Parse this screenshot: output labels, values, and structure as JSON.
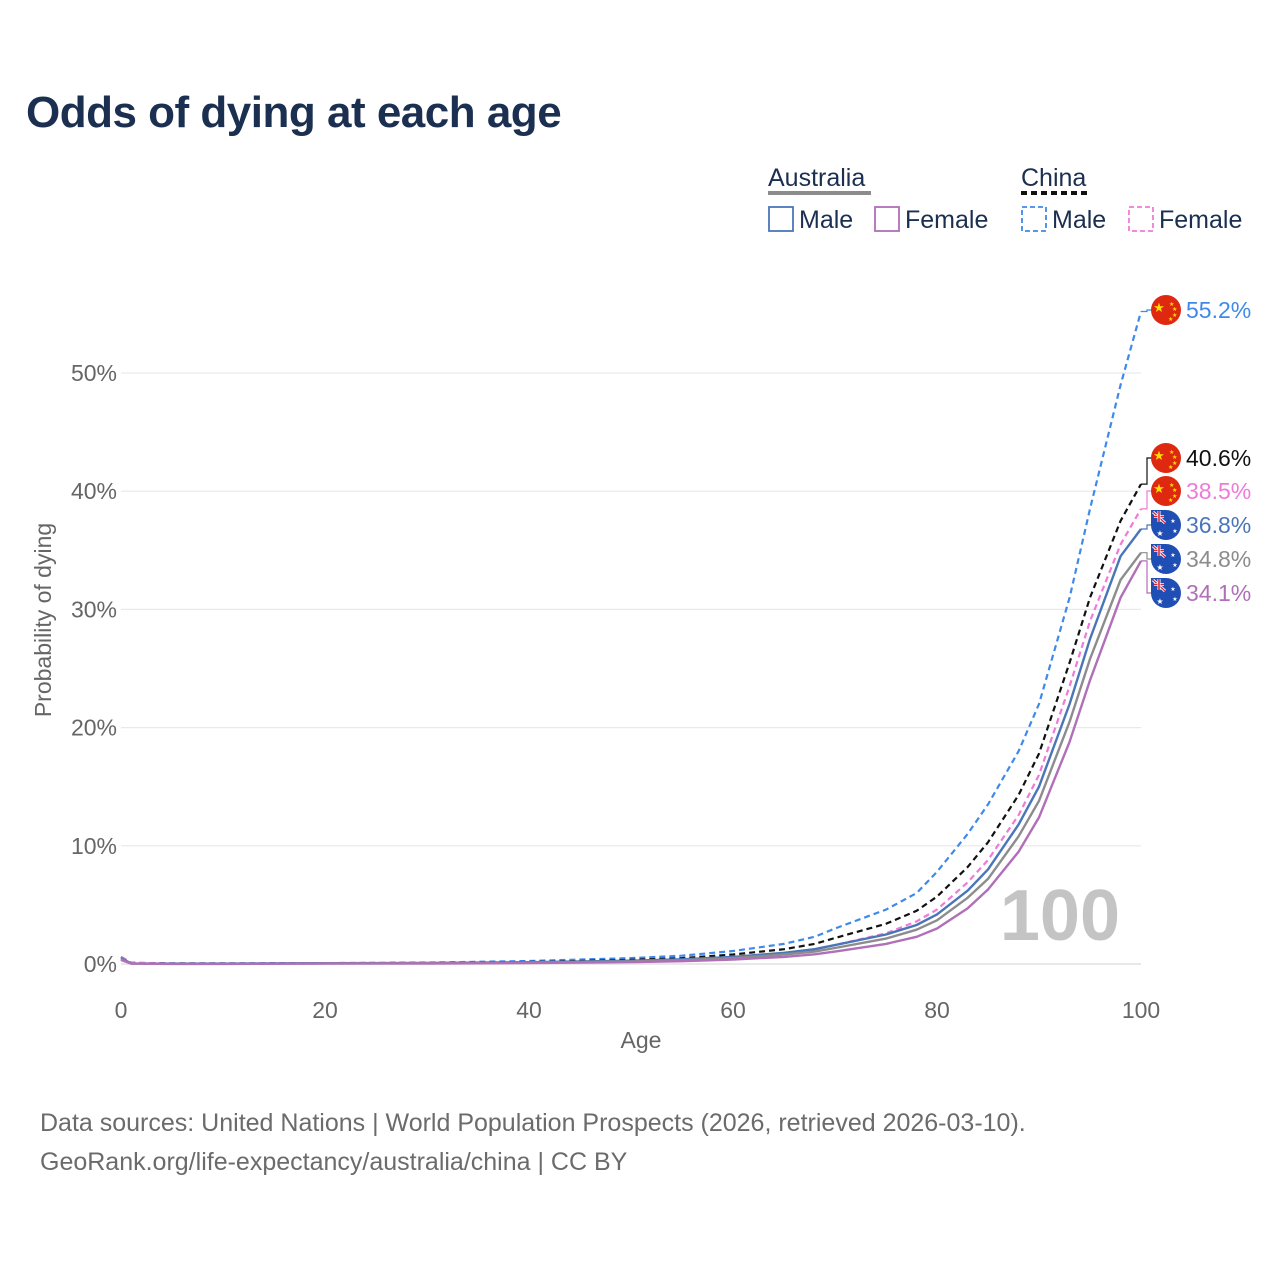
{
  "title": "Odds of dying at each age",
  "footer": {
    "line1": "Data sources: United Nations | World Population Prospects (2026, retrieved 2026-03-10).",
    "line2": "GeoRank.org/life-expectancy/australia/china | CC BY"
  },
  "legend": {
    "groups": [
      {
        "name": "Australia",
        "color": "#8c8c8c",
        "dash": false,
        "items": [
          {
            "label": "Male",
            "color": "#4a76b8"
          },
          {
            "label": "Female",
            "color": "#b06fb8"
          }
        ]
      },
      {
        "name": "China",
        "color": "#111111",
        "dash": true,
        "items": [
          {
            "label": "Male",
            "color": "#3f8ae8"
          },
          {
            "label": "Female",
            "color": "#f07ad8"
          }
        ]
      }
    ]
  },
  "watermark": "100",
  "chart_data": {
    "type": "line",
    "title": "Odds of dying at each age",
    "xlabel": "Age",
    "ylabel": "Probability of dying",
    "xlim": [
      0,
      100
    ],
    "ylim": [
      0,
      57
    ],
    "xticks": [
      0,
      20,
      40,
      60,
      80,
      100
    ],
    "yticks": [
      {
        "value": 0,
        "label": "0%"
      },
      {
        "value": 10,
        "label": "10%"
      },
      {
        "value": 20,
        "label": "20%"
      },
      {
        "value": 30,
        "label": "30%"
      },
      {
        "value": 40,
        "label": "40%"
      },
      {
        "value": 50,
        "label": "50%"
      }
    ],
    "x": [
      0,
      1,
      5,
      10,
      20,
      30,
      40,
      50,
      55,
      60,
      65,
      68,
      70,
      75,
      78,
      80,
      83,
      85,
      88,
      90,
      93,
      95,
      98,
      100
    ],
    "series": [
      {
        "name": "China Male",
        "country": "China",
        "sex": "Male",
        "color": "#3f8ae8",
        "dash": true,
        "values": [
          0.6,
          0.1,
          0.05,
          0.05,
          0.08,
          0.12,
          0.25,
          0.5,
          0.7,
          1.1,
          1.7,
          2.3,
          3.0,
          4.6,
          6.0,
          7.8,
          11.0,
          13.5,
          18.0,
          22.0,
          31.0,
          38.5,
          49.0,
          55.2
        ],
        "end_label": "55.2%",
        "flag": "china"
      },
      {
        "name": "China (both sexes)",
        "country": "China",
        "sex": "Both",
        "color": "#111111",
        "dash": true,
        "values": [
          0.6,
          0.1,
          0.04,
          0.04,
          0.06,
          0.09,
          0.17,
          0.35,
          0.5,
          0.8,
          1.25,
          1.7,
          2.2,
          3.4,
          4.5,
          5.7,
          8.2,
          10.3,
          14.3,
          17.8,
          25.5,
          31.0,
          37.5,
          40.6
        ],
        "end_label": "40.6%",
        "flag": "china"
      },
      {
        "name": "China Female",
        "country": "China",
        "sex": "Female",
        "color": "#f07ad8",
        "dash": true,
        "values": [
          0.6,
          0.1,
          0.03,
          0.03,
          0.04,
          0.06,
          0.1,
          0.22,
          0.32,
          0.55,
          0.9,
          1.25,
          1.6,
          2.6,
          3.6,
          4.6,
          6.9,
          8.8,
          12.6,
          16.0,
          23.5,
          29.0,
          35.5,
          38.5
        ],
        "end_label": "38.5%",
        "flag": "china"
      },
      {
        "name": "Australia Male",
        "country": "Australia",
        "sex": "Male",
        "color": "#4a76b8",
        "dash": false,
        "values": [
          0.5,
          0.05,
          0.03,
          0.03,
          0.07,
          0.09,
          0.15,
          0.28,
          0.4,
          0.6,
          0.95,
          1.25,
          1.6,
          2.5,
          3.3,
          4.2,
          6.2,
          8.0,
          11.8,
          15.0,
          22.0,
          27.5,
          34.5,
          36.8
        ],
        "end_label": "36.8%",
        "flag": "australia"
      },
      {
        "name": "Australia (both sexes)",
        "country": "Australia",
        "sex": "Both",
        "color": "#8c8c8c",
        "dash": false,
        "values": [
          0.4,
          0.04,
          0.02,
          0.02,
          0.05,
          0.07,
          0.12,
          0.22,
          0.32,
          0.5,
          0.8,
          1.05,
          1.35,
          2.15,
          2.9,
          3.7,
          5.6,
          7.2,
          10.8,
          13.8,
          20.5,
          25.8,
          32.5,
          34.8
        ],
        "end_label": "34.8%",
        "flag": "australia"
      },
      {
        "name": "Australia Female",
        "country": "Australia",
        "sex": "Female",
        "color": "#b06fb8",
        "dash": false,
        "values": [
          0.35,
          0.03,
          0.01,
          0.01,
          0.03,
          0.04,
          0.08,
          0.16,
          0.24,
          0.38,
          0.6,
          0.82,
          1.05,
          1.7,
          2.3,
          3.0,
          4.7,
          6.3,
          9.5,
          12.4,
          18.8,
          24.0,
          31.0,
          34.1
        ],
        "end_label": "34.1%",
        "flag": "australia"
      }
    ]
  }
}
